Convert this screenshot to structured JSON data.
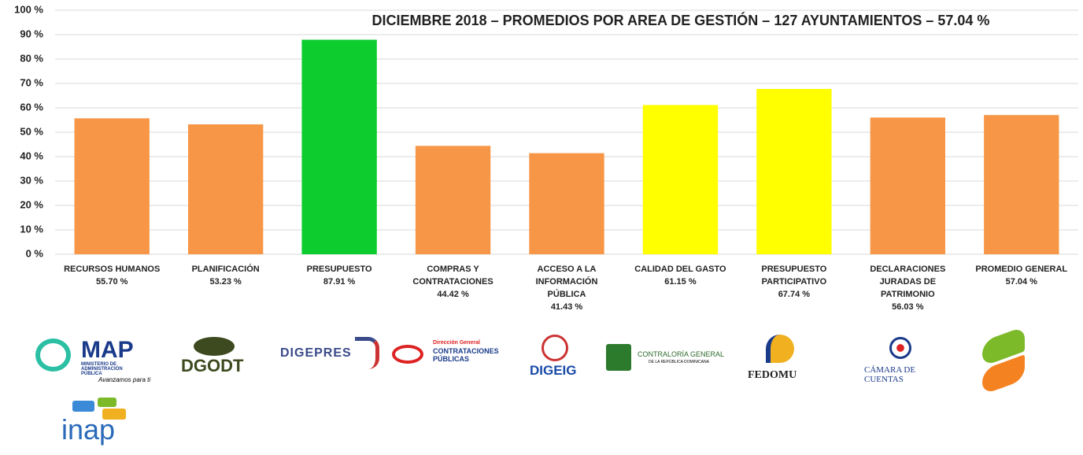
{
  "chart_data": {
    "type": "bar",
    "title": "DICIEMBRE  2018 – PROMEDIOS  POR AREA DE GESTIÓN  – 127 AYUNTAMIENTOS  – 57.04 %",
    "categories": [
      "RECURSOS HUMANOS",
      "PLANIFICACIÓN",
      "PRESUPUESTO",
      "COMPRAS Y\nCONTRATACIONES",
      "ACCESO A LA\nINFORMACIÓN\nPÚBLICA",
      "CALIDAD DEL GASTO",
      "PRESUPUESTO\nPARTICIPATIVO",
      "DECLARACIONES\nJURADAS DE\nPATRIMONIO",
      "PROMEDIO GENERAL"
    ],
    "values": [
      55.7,
      53.23,
      87.91,
      44.42,
      41.43,
      61.15,
      67.74,
      56.03,
      57.04
    ],
    "value_labels": [
      "55.70 %",
      "53.23 %",
      "87.91 %",
      "44.42 %",
      "41.43 %",
      "61.15 %",
      "67.74 %",
      "56.03 %",
      "57.04 %"
    ],
    "colors": [
      "#f79646",
      "#f79646",
      "#0ccc2e",
      "#f79646",
      "#f79646",
      "#ffff00",
      "#ffff00",
      "#f79646",
      "#f79646"
    ],
    "ylim": [
      0,
      100
    ],
    "yticks": [
      {
        "value": 0,
        "label": "0 %"
      },
      {
        "value": 10,
        "label": "10 %"
      },
      {
        "value": 20,
        "label": "20 %"
      },
      {
        "value": 30,
        "label": "30 %"
      },
      {
        "value": 40,
        "label": "40 %"
      },
      {
        "value": 50,
        "label": "50 %"
      },
      {
        "value": 60,
        "label": "60 %"
      },
      {
        "value": 70,
        "label": "70 %"
      },
      {
        "value": 80,
        "label": "80 %"
      },
      {
        "value": 90,
        "label": "90 %"
      },
      {
        "value": 100,
        "label": "100 %"
      }
    ],
    "grid": true
  },
  "logos": {
    "map": "MAP",
    "map_sub": "MINISTERIO DE ADMINISTRACIÓN PÚBLICA",
    "map_slogan": "Avanzamos para ti",
    "dgodt": "DGODT",
    "digepres": "DIGEPRES",
    "dgcp_top": "Dirección General",
    "dgcp": "CONTRATACIONES PÚBLICAS",
    "digeig": "DIGEIG",
    "contraloria": "CONTRALORÍA GENERAL",
    "contraloria_sub": "DE LA REPÚBLICA DOMINICANA",
    "fedomu": "FEDOMU",
    "camara": "CÁMARA DE CUENTAS",
    "inap": "inap"
  }
}
